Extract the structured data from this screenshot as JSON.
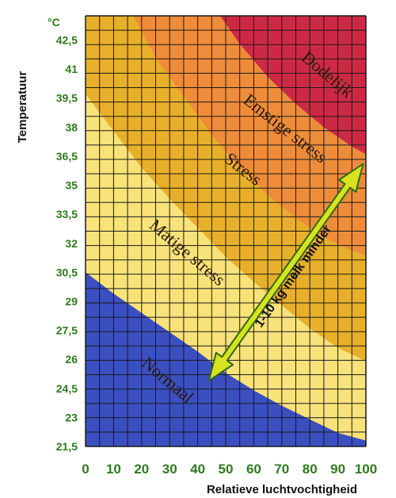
{
  "chart_data": {
    "type": "heatmap",
    "xlabel": "Relatieve luchtvochtigheid",
    "ylabel": "Temperatuur",
    "yunit": "°C",
    "xlim": [
      0,
      100
    ],
    "ylim": [
      21.5,
      43.75
    ],
    "xticks": [
      "0",
      "10",
      "20",
      "30",
      "40",
      "50",
      "60",
      "70",
      "80",
      "90",
      "100"
    ],
    "yticks": [
      "21,5",
      "23",
      "24,5",
      "26",
      "27,5",
      "29",
      "30,5",
      "32",
      "33,5",
      "35",
      "36,5",
      "38",
      "39,5",
      "41",
      "42,5"
    ],
    "zones": [
      {
        "name": "Normaal",
        "color": "#3a4fc0",
        "upper_boundary": [
          [
            0,
            30.5
          ],
          [
            10,
            29.4
          ],
          [
            20,
            28.4
          ],
          [
            30,
            27.4
          ],
          [
            40,
            26.4
          ],
          [
            50,
            25.3
          ],
          [
            60,
            24.4
          ],
          [
            70,
            23.6
          ],
          [
            80,
            22.9
          ],
          [
            90,
            22.2
          ],
          [
            100,
            21.8
          ]
        ]
      },
      {
        "name": "Matige stress",
        "color": "#f8e27a",
        "upper_boundary": [
          [
            0,
            39.7
          ],
          [
            10,
            37.8
          ],
          [
            20,
            35.9
          ],
          [
            30,
            34.3
          ],
          [
            40,
            32.8
          ],
          [
            50,
            31.3
          ],
          [
            60,
            30.0
          ],
          [
            70,
            28.8
          ],
          [
            80,
            27.6
          ],
          [
            90,
            26.6
          ],
          [
            100,
            25.9
          ]
        ]
      },
      {
        "name": "Stress",
        "color": "#e8b02a",
        "upper_boundary": [
          [
            17,
            43.75
          ],
          [
            25,
            41.6
          ],
          [
            35,
            39.6
          ],
          [
            45,
            37.6
          ],
          [
            55,
            35.9
          ],
          [
            65,
            34.5
          ],
          [
            75,
            33.3
          ],
          [
            85,
            32.3
          ],
          [
            95,
            31.6
          ],
          [
            100,
            31.4
          ]
        ]
      },
      {
        "name": "Emstige stress",
        "color": "#ee8c3a",
        "upper_boundary": [
          [
            48,
            43.75
          ],
          [
            55,
            42.3
          ],
          [
            65,
            40.6
          ],
          [
            75,
            39.2
          ],
          [
            85,
            38.0
          ],
          [
            95,
            37.0
          ],
          [
            100,
            36.6
          ]
        ]
      },
      {
        "name": "Dodelijk",
        "color": "#cc2a44",
        "upper_boundary": [
          [
            100,
            43.75
          ]
        ]
      }
    ],
    "annotation": {
      "text": "1-10 kg melk minder",
      "from": [
        44,
        24.9
      ],
      "to": [
        99,
        36.1
      ]
    }
  }
}
